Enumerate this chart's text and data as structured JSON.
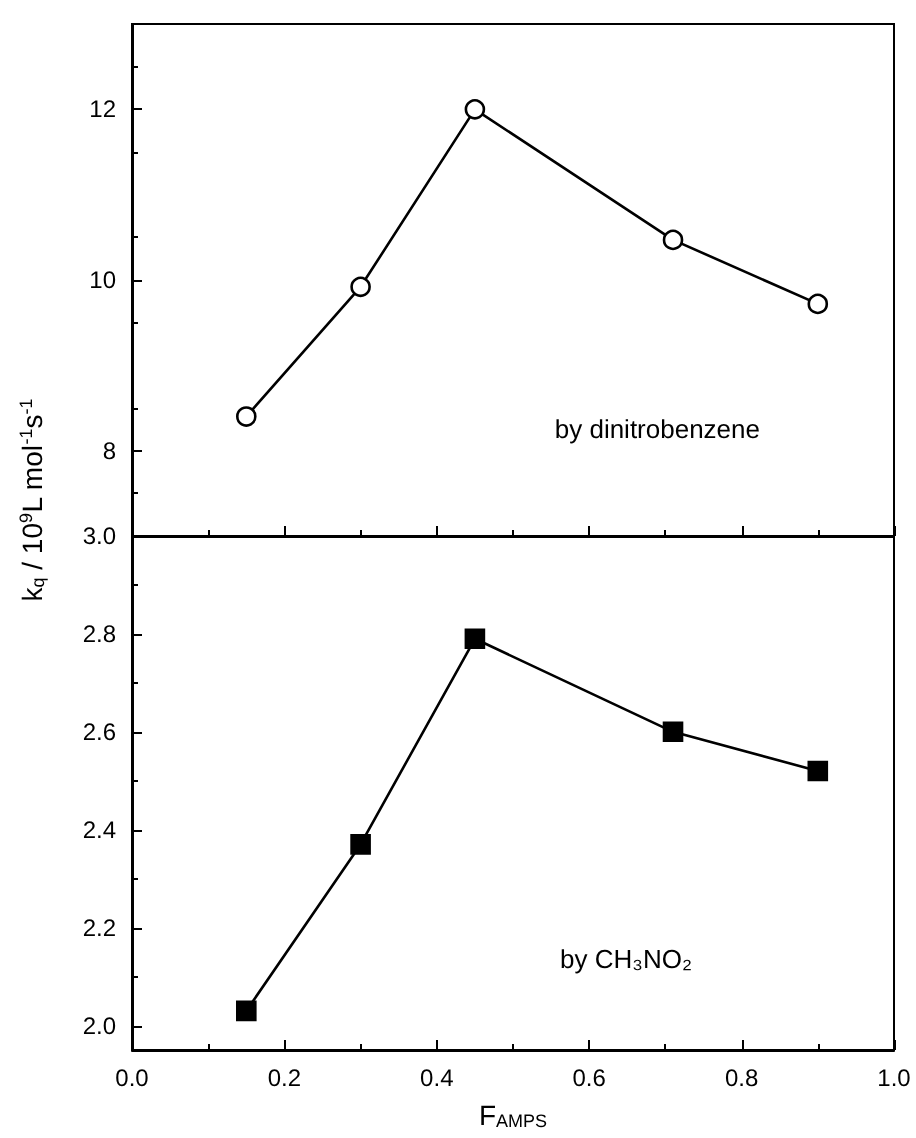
{
  "chart_data": [
    {
      "type": "line",
      "ylabel": "k$_{q}$ / 10$^{9}$L mol$^{-1}$s$^{-1}$",
      "annotations": [
        "by dinitrobenzene"
      ],
      "x": [
        0.15,
        0.3,
        0.45,
        0.71,
        0.9
      ],
      "series": [
        {
          "color": "#000000",
          "values": [
            8.4,
            9.92,
            12.0,
            10.47,
            9.72
          ]
        }
      ],
      "marker": "circle",
      "xlim": [
        0,
        1
      ],
      "xticks": [
        0,
        0.2,
        0.4,
        0.6,
        0.8,
        1.0
      ],
      "ylim": [
        7,
        13
      ],
      "yticks": [
        8,
        10,
        12
      ],
      "tick_labels": "y",
      "grid": false
    },
    {
      "type": "line",
      "xlabel": "F$_{AMPS}$",
      "annotations": [
        "by CH₃NO₂"
      ],
      "x": [
        0.15,
        0.3,
        0.45,
        0.71,
        0.9
      ],
      "series": [
        {
          "color": "#000000",
          "values": [
            2.03,
            2.37,
            2.79,
            2.6,
            2.52
          ]
        }
      ],
      "marker": "square",
      "xlim": [
        0,
        1
      ],
      "xticks": [
        {
          "value": 0,
          "label": "0.0"
        },
        0.2,
        0.4,
        0.6,
        0.8,
        {
          "value": 1,
          "label": "1.0"
        }
      ],
      "ylim": [
        1.95,
        3.0
      ],
      "yticks": [
        {
          "value": 2,
          "label": "2.0"
        },
        2.2,
        2.4,
        2.6,
        2.8,
        {
          "value": 3,
          "label": "3.0"
        }
      ],
      "grid": false
    }
  ]
}
